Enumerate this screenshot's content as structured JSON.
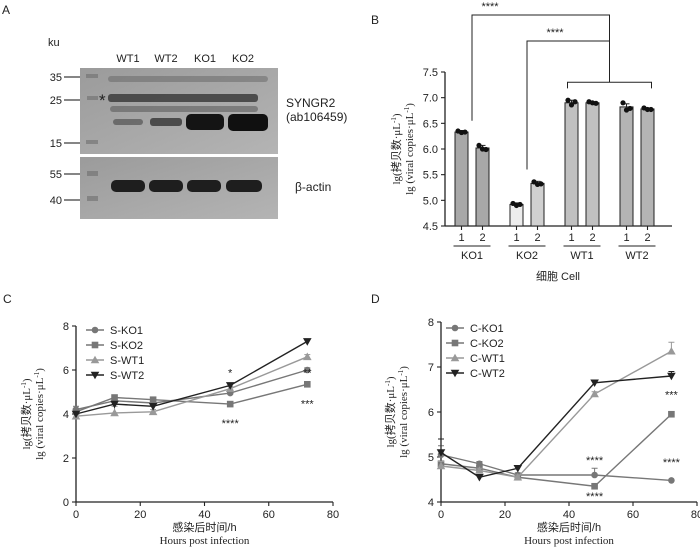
{
  "panels": {
    "a": {
      "letter": "A",
      "unit_label": "ku",
      "lanes": [
        "WT1",
        "WT2",
        "KO1",
        "KO2"
      ],
      "markers_top": [
        "35",
        "25",
        "15"
      ],
      "markers_bottom": [
        "55",
        "40"
      ],
      "asterisk": "*",
      "antibody_name": "SYNGR2",
      "antibody_id": "(ab106459)",
      "loading_control": "β-actin"
    },
    "b": {
      "letter": "B"
    },
    "c": {
      "letter": "C"
    },
    "d": {
      "letter": "D"
    }
  },
  "chart_data": [
    {
      "panel": "B",
      "type": "bar",
      "ylabel_cn": "lg(拷贝数·μL",
      "ylabel_en": "lg (viral copies·μL",
      "ylabel_sup": "-1",
      "ylabel_close": ")",
      "xlabel_cn": "细胞",
      "xlabel_en": "Cell",
      "ylim": [
        4.5,
        7.5
      ],
      "yticks": [
        "4.5",
        "5.0",
        "5.5",
        "6.0",
        "6.5",
        "7.0",
        "7.5"
      ],
      "groups": [
        "KO1",
        "KO2",
        "WT1",
        "WT2"
      ],
      "categories": [
        "1",
        "2",
        "1",
        "2",
        "1",
        "2",
        "1",
        "2"
      ],
      "values": [
        6.33,
        6.02,
        4.92,
        5.33,
        6.9,
        6.9,
        6.82,
        6.78
      ],
      "errors": [
        0.03,
        0.05,
        0.03,
        0.04,
        0.05,
        0.02,
        0.06,
        0.02
      ],
      "points": [
        [
          6.35,
          6.32,
          6.33
        ],
        [
          6.07,
          6.0,
          5.99
        ],
        [
          4.94,
          4.9,
          4.92
        ],
        [
          5.36,
          5.31,
          5.32
        ],
        [
          6.95,
          6.86,
          6.92
        ],
        [
          6.92,
          6.9,
          6.89
        ],
        [
          6.9,
          6.76,
          6.79
        ],
        [
          6.8,
          6.77,
          6.77
        ]
      ],
      "colors": [
        "#a8a8a8",
        "#a8a8a8",
        "#ececec",
        "#d0d0d0",
        "#c0c0c0",
        "#c0c0c0",
        "#b4b4b4",
        "#b4b4b4"
      ],
      "significance": [
        "****",
        "****"
      ]
    },
    {
      "panel": "C",
      "type": "line",
      "ylabel_cn": "lg(拷贝数·μL",
      "ylabel_en": "lg (viral copies·μL",
      "ylabel_sup": "-1",
      "ylabel_close": ")",
      "xlabel_cn": "感染后时间/h",
      "xlabel_en": "Hours post infection",
      "xlim": [
        0,
        80
      ],
      "ylim": [
        0,
        8
      ],
      "xticks": [
        "0",
        "20",
        "40",
        "60",
        "80"
      ],
      "yticks": [
        "0",
        "2",
        "4",
        "6",
        "8"
      ],
      "x": [
        0,
        12,
        24,
        48,
        72
      ],
      "series": [
        {
          "name": "S-KO1",
          "marker": "circle",
          "values": [
            4.2,
            4.6,
            4.5,
            4.95,
            6.0
          ],
          "errors": [
            0.15,
            0.1,
            0.1,
            0.15,
            0.1
          ]
        },
        {
          "name": "S-KO2",
          "marker": "square",
          "values": [
            4.1,
            4.75,
            4.65,
            4.45,
            5.35
          ],
          "errors": [
            0.1,
            0.1,
            0.1,
            0.1,
            0.1
          ]
        },
        {
          "name": "S-WT1",
          "marker": "triangle-up",
          "values": [
            3.9,
            4.05,
            4.1,
            5.15,
            6.6
          ],
          "errors": [
            0.1,
            0.3,
            0.1,
            0.1,
            0.1
          ]
        },
        {
          "name": "S-WT2",
          "marker": "triangle-down",
          "values": [
            4.0,
            4.45,
            4.35,
            5.3,
            7.3
          ],
          "errors": [
            0.1,
            0.1,
            0.1,
            0.1,
            0.1
          ]
        }
      ],
      "annotations": [
        "*",
        "****",
        "**",
        "***"
      ]
    },
    {
      "panel": "D",
      "type": "line",
      "ylabel_cn": "lg(拷贝数·μL",
      "ylabel_en": "lg (viral copies·μL",
      "ylabel_sup": "-1",
      "ylabel_close": ")",
      "xlabel_cn": "感染后时间/h",
      "xlabel_en": "Hours post infection",
      "xlim": [
        0,
        80
      ],
      "ylim": [
        4,
        8
      ],
      "xticks": [
        "0",
        "20",
        "40",
        "60",
        "80"
      ],
      "yticks": [
        "4",
        "5",
        "6",
        "7",
        "8"
      ],
      "x": [
        0,
        12,
        24,
        48,
        72
      ],
      "series": [
        {
          "name": "C-KO1",
          "marker": "circle",
          "values": [
            5.05,
            4.85,
            4.6,
            4.6,
            4.48
          ],
          "errors": [
            0.2,
            0.05,
            0.05,
            0.15,
            0.02
          ]
        },
        {
          "name": "C-KO2",
          "marker": "square",
          "values": [
            4.85,
            4.75,
            4.55,
            4.35,
            5.95
          ],
          "errors": [
            0.05,
            0.05,
            0.05,
            0.05,
            0.05
          ]
        },
        {
          "name": "C-WT1",
          "marker": "triangle-up",
          "values": [
            4.8,
            4.7,
            4.55,
            6.4,
            7.35
          ],
          "errors": [
            0.1,
            0.05,
            0.05,
            0.05,
            0.2
          ]
        },
        {
          "name": "C-WT2",
          "marker": "triangle-down",
          "values": [
            5.1,
            4.55,
            4.75,
            6.65,
            6.8
          ],
          "errors": [
            0.3,
            0.05,
            0.05,
            0.05,
            0.1
          ]
        }
      ],
      "annotations": [
        "****",
        "****",
        "***",
        "****"
      ]
    }
  ]
}
